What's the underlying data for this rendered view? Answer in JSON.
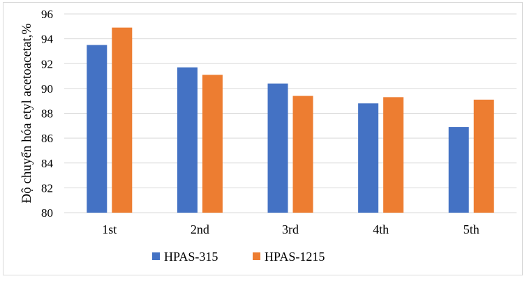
{
  "chart_data": {
    "type": "bar",
    "title": "",
    "xlabel": "",
    "ylabel": "Độ chuyển hóa etyl acetoacetat,%",
    "categories": [
      "1st",
      "2nd",
      "3rd",
      "4th",
      "5th"
    ],
    "series": [
      {
        "name": "HPAS-315",
        "color": "#4472C4",
        "values": [
          93.5,
          91.7,
          90.4,
          88.8,
          86.9
        ]
      },
      {
        "name": "HPAS-1215",
        "color": "#ED7D31",
        "values": [
          94.9,
          91.1,
          89.4,
          89.3,
          89.1
        ]
      }
    ],
    "ylim": [
      80,
      96
    ],
    "yticks": [
      80,
      82,
      84,
      86,
      88,
      90,
      92,
      94,
      96
    ],
    "grid": true,
    "legend": "bottom"
  }
}
